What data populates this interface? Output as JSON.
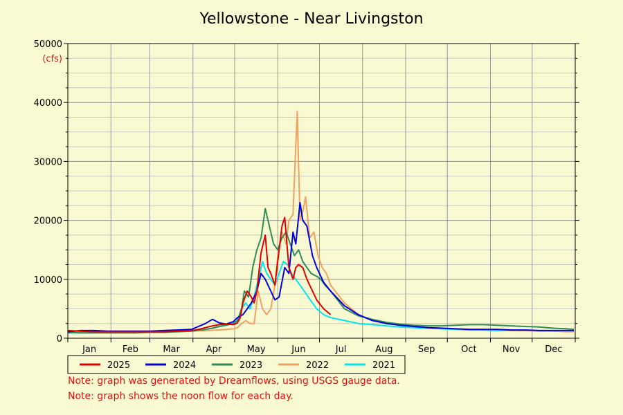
{
  "chart_data": {
    "type": "line",
    "title": "Yellowstone - Near Livingston",
    "ylabel": "(cfs)",
    "xlabel": "",
    "ylim": [
      0,
      50000
    ],
    "yticks": [
      0,
      10000,
      20000,
      30000,
      40000,
      50000
    ],
    "months": [
      "Jan",
      "Feb",
      "Mar",
      "Apr",
      "May",
      "Jun",
      "Jul",
      "Aug",
      "Sep",
      "Oct",
      "Nov",
      "Dec"
    ],
    "x_unit": "day of year",
    "grid": true,
    "legend_position": "bottom",
    "series": [
      {
        "name": "2025",
        "color": "#e00000",
        "x": [
          1,
          10,
          20,
          30,
          40,
          50,
          60,
          70,
          80,
          90,
          95,
          100,
          105,
          110,
          115,
          120,
          123,
          125,
          127,
          130,
          133,
          135,
          137,
          140,
          143,
          145,
          147,
          150,
          152,
          155,
          157,
          160,
          163,
          165,
          167,
          170,
          173,
          177,
          180,
          185,
          190
        ],
        "y": [
          1300,
          1200,
          1100,
          1100,
          1100,
          1100,
          1100,
          1100,
          1200,
          1300,
          1500,
          1800,
          2100,
          2300,
          2400,
          2300,
          2600,
          3500,
          6000,
          8000,
          7000,
          6000,
          8000,
          14500,
          17500,
          12000,
          11000,
          9000,
          13000,
          19000,
          20500,
          12000,
          10000,
          12000,
          12500,
          12000,
          10000,
          8000,
          6500,
          5000,
          4000
        ]
      },
      {
        "name": "2024",
        "color": "#0000dd",
        "x": [
          1,
          10,
          20,
          30,
          40,
          50,
          60,
          70,
          80,
          90,
          95,
          100,
          105,
          110,
          115,
          120,
          123,
          127,
          130,
          133,
          137,
          140,
          143,
          147,
          150,
          153,
          157,
          160,
          163,
          165,
          168,
          170,
          173,
          177,
          180,
          185,
          190,
          200,
          210,
          220,
          230,
          240,
          250,
          260,
          270,
          280,
          290,
          300,
          310,
          320,
          330,
          340,
          350,
          360,
          365
        ],
        "y": [
          1100,
          1300,
          1300,
          1200,
          1200,
          1200,
          1200,
          1300,
          1400,
          1500,
          2000,
          2500,
          3200,
          2600,
          2400,
          2800,
          3500,
          4000,
          5000,
          6000,
          8000,
          11000,
          10000,
          8000,
          6500,
          7000,
          12000,
          11000,
          18000,
          16000,
          23000,
          20000,
          19000,
          14000,
          12000,
          9500,
          8000,
          5500,
          4000,
          3000,
          2500,
          2200,
          2000,
          1800,
          1700,
          1600,
          1500,
          1500,
          1500,
          1400,
          1400,
          1300,
          1300,
          1300,
          1300
        ]
      },
      {
        "name": "2023",
        "color": "#2e8b57",
        "x": [
          1,
          10,
          20,
          30,
          40,
          50,
          60,
          70,
          80,
          90,
          100,
          105,
          110,
          115,
          120,
          123,
          126,
          128,
          131,
          134,
          137,
          140,
          143,
          146,
          149,
          152,
          155,
          158,
          161,
          164,
          167,
          170,
          173,
          176,
          180,
          183,
          186,
          190,
          195,
          200,
          210,
          220,
          230,
          240,
          250,
          260,
          270,
          280,
          290,
          300,
          310,
          320,
          330,
          340,
          350,
          360,
          365
        ],
        "y": [
          1000,
          900,
          900,
          900,
          900,
          900,
          1000,
          1000,
          1100,
          1200,
          1500,
          1700,
          2000,
          2200,
          2500,
          3000,
          5000,
          8000,
          7000,
          12000,
          15000,
          17000,
          22000,
          19000,
          16000,
          15000,
          17000,
          18000,
          16000,
          14000,
          15000,
          13000,
          12000,
          11000,
          10500,
          10000,
          9000,
          8000,
          6500,
          5000,
          3800,
          3200,
          2700,
          2400,
          2200,
          2100,
          2100,
          2200,
          2300,
          2300,
          2200,
          2100,
          2000,
          1900,
          1700,
          1600,
          1500
        ]
      },
      {
        "name": "2022",
        "color": "#f0a060",
        "x": [
          1,
          10,
          20,
          30,
          40,
          50,
          60,
          70,
          80,
          90,
          100,
          110,
          115,
          120,
          123,
          126,
          129,
          132,
          135,
          138,
          141,
          144,
          147,
          150,
          152,
          155,
          158,
          160,
          163,
          164,
          166,
          168,
          170,
          172,
          175,
          178,
          181,
          184,
          187,
          190,
          195,
          200,
          205,
          210,
          215,
          220,
          230,
          240,
          250,
          260,
          270,
          280,
          290,
          300,
          310,
          320,
          330,
          340,
          350,
          360,
          365
        ],
        "y": [
          1300,
          1100,
          1000,
          900,
          900,
          900,
          1000,
          1000,
          1100,
          1200,
          1300,
          1400,
          1500,
          1600,
          1800,
          2500,
          3000,
          2500,
          2500,
          8000,
          5000,
          4000,
          5000,
          9000,
          14000,
          18000,
          16000,
          20000,
          21000,
          27000,
          38500,
          20000,
          21500,
          24000,
          17000,
          18000,
          14000,
          12000,
          11000,
          9000,
          7500,
          6000,
          5000,
          4000,
          3500,
          3000,
          2500,
          2200,
          2000,
          1800,
          1700,
          1600,
          1500,
          1500,
          1400,
          1300,
          1300,
          1200,
          1200,
          1100,
          1100
        ]
      },
      {
        "name": "2021",
        "color": "#00e5ee",
        "x": [
          1,
          10,
          20,
          30,
          40,
          50,
          60,
          70,
          80,
          90,
          100,
          105,
          110,
          115,
          120,
          123,
          126,
          129,
          132,
          135,
          138,
          141,
          144,
          147,
          150,
          153,
          156,
          159,
          162,
          165,
          168,
          171,
          174,
          177,
          180,
          185,
          190,
          200,
          210,
          220,
          230,
          240,
          250,
          260,
          270,
          280,
          290,
          300,
          310,
          320,
          330,
          340,
          350,
          360,
          365
        ],
        "y": [
          900,
          900,
          900,
          1000,
          1000,
          1000,
          1000,
          1100,
          1200,
          1300,
          1500,
          1700,
          2000,
          2300,
          2500,
          3000,
          5000,
          6000,
          5000,
          7000,
          10000,
          13000,
          11000,
          10000,
          9000,
          11000,
          13000,
          12500,
          11000,
          10000,
          9000,
          8000,
          7000,
          6000,
          5000,
          4000,
          3500,
          3000,
          2500,
          2300,
          2100,
          1900,
          1800,
          1700,
          1600,
          1500,
          1400,
          1400,
          1300,
          1300,
          1300,
          1300,
          1200,
          1200,
          1200
        ]
      }
    ]
  },
  "notes": [
    "Note: graph was generated by Dreamflows, using USGS gauge data.",
    "Note: graph shows the noon flow for each day."
  ]
}
